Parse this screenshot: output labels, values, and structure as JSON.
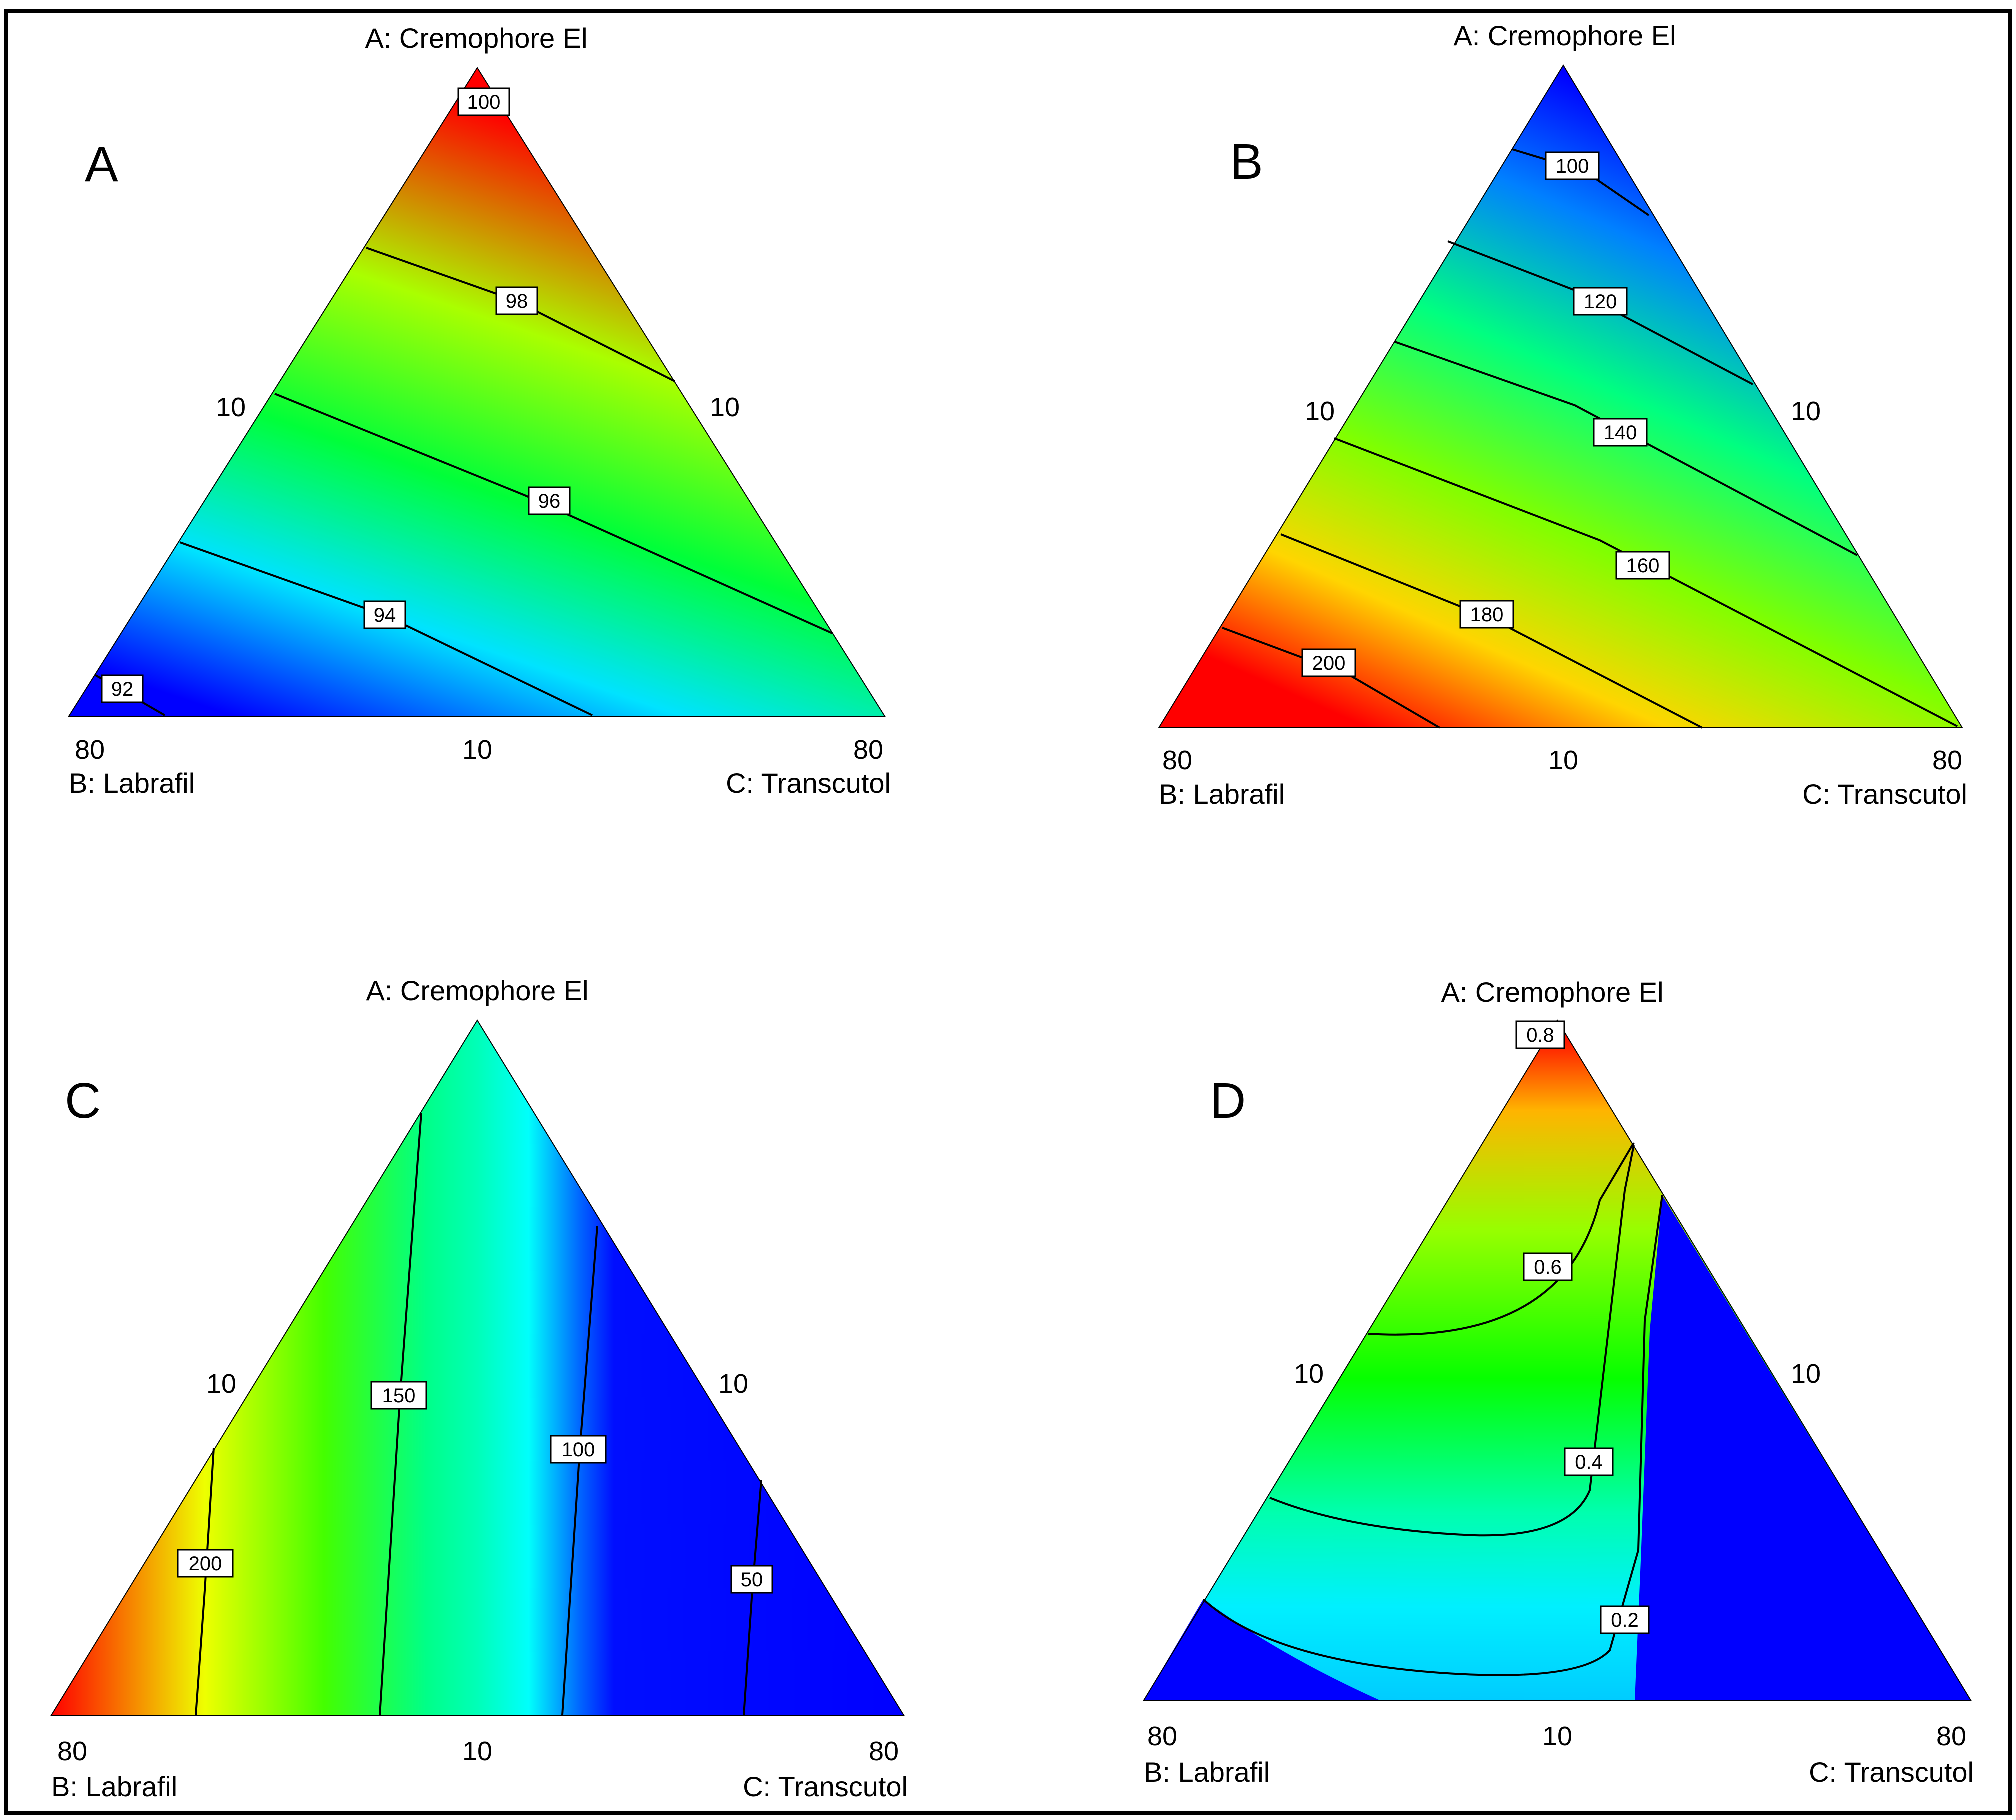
{
  "figure": {
    "frame_color": "#000000",
    "colormap": [
      "#0000ff",
      "#00ffff",
      "#00ff00",
      "#ffff00",
      "#ff0000"
    ]
  },
  "chart_data": [
    {
      "type": "contour",
      "panel": "A",
      "top_label": "A: Cremophore El",
      "left_label": "B: Labrafil",
      "right_label": "C: Transcutol",
      "ticks": {
        "top_left": "10",
        "top_right": "10",
        "bottom_left": "80",
        "bottom_mid": "10",
        "bottom_right": "80"
      },
      "contour_labels": [
        "100",
        "98",
        "96",
        "94",
        "92"
      ],
      "contour_values": [
        100,
        98,
        96,
        94,
        92
      ],
      "color_range": [
        91.5,
        100.5
      ]
    },
    {
      "type": "contour",
      "panel": "B",
      "top_label": "A: Cremophore El",
      "left_label": "B: Labrafil",
      "right_label": "C: Transcutol",
      "ticks": {
        "top_left": "10",
        "top_right": "10",
        "bottom_left": "80",
        "bottom_mid": "10",
        "bottom_right": "80"
      },
      "contour_labels": [
        "100",
        "120",
        "140",
        "160",
        "180",
        "200"
      ],
      "contour_values": [
        100,
        120,
        140,
        160,
        180,
        200
      ],
      "color_range": [
        90,
        210
      ]
    },
    {
      "type": "contour",
      "panel": "C",
      "top_label": "A: Cremophore El",
      "left_label": "B: Labrafil",
      "right_label": "C: Transcutol",
      "ticks": {
        "top_left": "10",
        "top_right": "10",
        "bottom_left": "80",
        "bottom_mid": "10",
        "bottom_right": "80"
      },
      "contour_labels": [
        "200",
        "150",
        "100",
        "50"
      ],
      "contour_values": [
        200,
        150,
        100,
        50
      ],
      "color_range": [
        90,
        240
      ]
    },
    {
      "type": "contour",
      "panel": "D",
      "top_label": "A: Cremophore El",
      "left_label": "B: Labrafil",
      "right_label": "C: Transcutol",
      "ticks": {
        "top_left": "10",
        "top_right": "10",
        "bottom_left": "80",
        "bottom_mid": "10",
        "bottom_right": "80"
      },
      "contour_labels": [
        "0.8",
        "0.6",
        "0.4",
        "0.2"
      ],
      "contour_values": [
        0.8,
        0.6,
        0.4,
        0.2
      ],
      "color_range": [
        0.05,
        0.9
      ]
    }
  ]
}
